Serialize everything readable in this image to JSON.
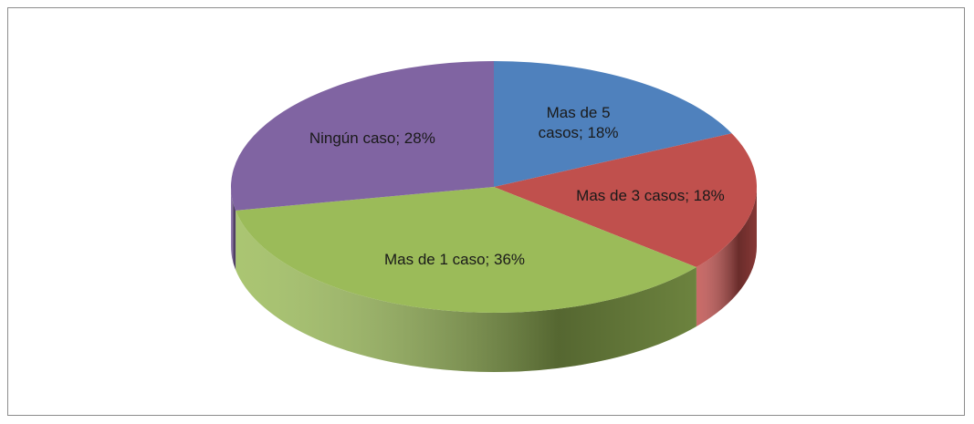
{
  "chart_data": {
    "type": "pie",
    "labels": [
      "Mas de 5 casos; 18%",
      "Mas de 3 casos; 18%",
      "Mas de 1 caso; 36%",
      "Ningún caso; 28%"
    ],
    "values": [
      18,
      18,
      36,
      28
    ],
    "colors": [
      "#4f81bd",
      "#c0504d",
      "#9bbb59",
      "#8064a2"
    ]
  }
}
